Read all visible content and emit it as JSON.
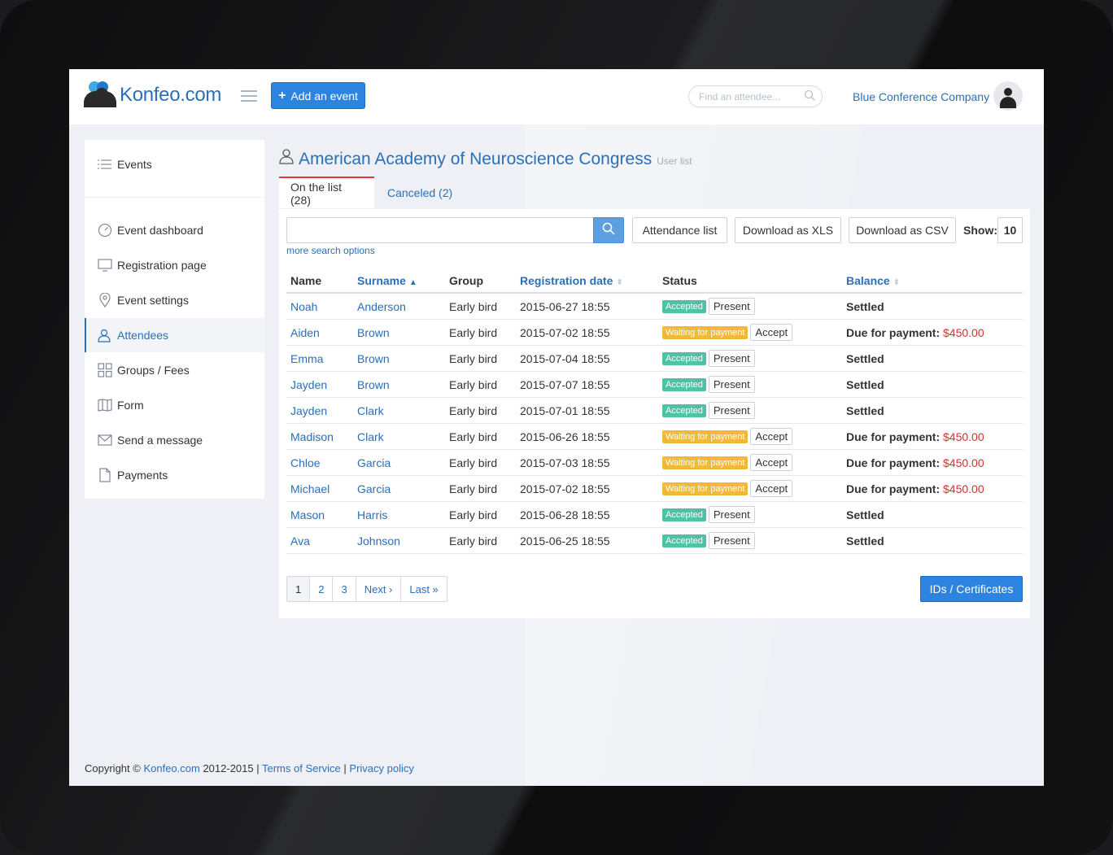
{
  "header": {
    "logo_text": "Konfeo.com",
    "add_event_label": "Add an event",
    "search_placeholder": "Find an attendee...",
    "company_name": "Blue Conference Company"
  },
  "sidebar": {
    "items": [
      {
        "label": "Events",
        "icon": "list-icon"
      },
      {
        "label": "Event dashboard",
        "icon": "gauge-icon"
      },
      {
        "label": "Registration page",
        "icon": "monitor-icon"
      },
      {
        "label": "Event settings",
        "icon": "map-pin-icon"
      },
      {
        "label": "Attendees",
        "icon": "users-icon"
      },
      {
        "label": "Groups / Fees",
        "icon": "grid-icon"
      },
      {
        "label": "Form",
        "icon": "book-icon"
      },
      {
        "label": "Send a message",
        "icon": "envelope-icon"
      },
      {
        "label": "Payments",
        "icon": "document-icon"
      }
    ]
  },
  "main": {
    "title": "American Academy of Neuroscience Congress",
    "subtitle": "User list",
    "tabs": [
      {
        "label": "On the list (28)"
      },
      {
        "label": "Canceled (2)"
      }
    ],
    "more_search": "more search options",
    "attendance_label": "Attendance list",
    "xls_label": "Download as XLS",
    "csv_label": "Download as CSV",
    "show_label": "Show:",
    "show_value": "10",
    "columns": [
      "Name",
      "Surname",
      "Group",
      "Registration date",
      "Status",
      "Balance"
    ],
    "rows": [
      {
        "name": "Noah",
        "surname": "Anderson",
        "group": "Early bird",
        "date": "2015-06-27 18:55",
        "status": "Accepted",
        "action": "Present",
        "balance": "Settled",
        "amount": ""
      },
      {
        "name": "Aiden",
        "surname": "Brown",
        "group": "Early bird",
        "date": "2015-07-02 18:55",
        "status": "Waiting for payment",
        "action": "Accept",
        "balance": "Due for payment:",
        "amount": "$450.00"
      },
      {
        "name": "Emma",
        "surname": "Brown",
        "group": "Early bird",
        "date": "2015-07-04 18:55",
        "status": "Accepted",
        "action": "Present",
        "balance": "Settled",
        "amount": ""
      },
      {
        "name": "Jayden",
        "surname": "Brown",
        "group": "Early bird",
        "date": "2015-07-07 18:55",
        "status": "Accepted",
        "action": "Present",
        "balance": "Settled",
        "amount": ""
      },
      {
        "name": "Jayden",
        "surname": "Clark",
        "group": "Early bird",
        "date": "2015-07-01 18:55",
        "status": "Accepted",
        "action": "Present",
        "balance": "Settled",
        "amount": ""
      },
      {
        "name": "Madison",
        "surname": "Clark",
        "group": "Early bird",
        "date": "2015-06-26 18:55",
        "status": "Waiting for payment",
        "action": "Accept",
        "balance": "Due for payment:",
        "amount": "$450.00"
      },
      {
        "name": "Chloe",
        "surname": "Garcia",
        "group": "Early bird",
        "date": "2015-07-03 18:55",
        "status": "Waiting for payment",
        "action": "Accept",
        "balance": "Due for payment:",
        "amount": "$450.00"
      },
      {
        "name": "Michael",
        "surname": "Garcia",
        "group": "Early bird",
        "date": "2015-07-02 18:55",
        "status": "Waiting for payment",
        "action": "Accept",
        "balance": "Due for payment:",
        "amount": "$450.00"
      },
      {
        "name": "Mason",
        "surname": "Harris",
        "group": "Early bird",
        "date": "2015-06-28 18:55",
        "status": "Accepted",
        "action": "Present",
        "balance": "Settled",
        "amount": ""
      },
      {
        "name": "Ava",
        "surname": "Johnson",
        "group": "Early bird",
        "date": "2015-06-25 18:55",
        "status": "Accepted",
        "action": "Present",
        "balance": "Settled",
        "amount": ""
      }
    ],
    "pagination": [
      "1",
      "2",
      "3",
      "Next ›",
      "Last »"
    ],
    "ids_label": "IDs / Certificates"
  },
  "footer": {
    "copyright_prefix": "Copyright © ",
    "site": "Konfeo.com",
    "years": " 2012-2015 | ",
    "terms": "Terms of Service",
    "sep": " | ",
    "privacy": "Privacy policy"
  },
  "colors": {
    "accent": "#2d84e0",
    "link": "#2a6fb8",
    "accepted": "#4fc1a6",
    "waiting": "#f0b93a",
    "due_amount": "#d0312d",
    "active_tab_border": "#e53935"
  }
}
